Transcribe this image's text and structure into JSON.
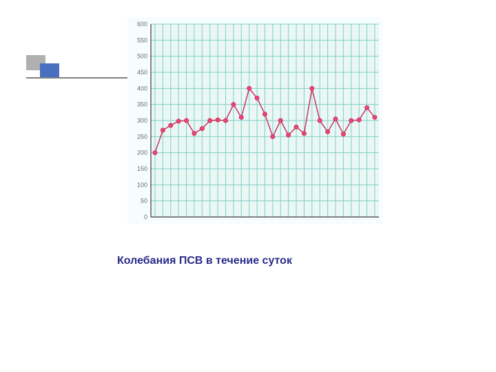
{
  "caption": {
    "text": "Колебания ПСВ в течение суток",
    "color": "#2a2a8a",
    "fontsize": 16,
    "fontweight": "bold"
  },
  "decoration": {
    "block1_color": "#b0b0b0",
    "block2_color": "#4a6fc0",
    "line_color": "#808080"
  },
  "chart": {
    "type": "line",
    "background_color": "#f5fdfd",
    "plot_background": "#eaf7f5",
    "grid_color": "#7fcfc5",
    "grid_width": 1,
    "axis_color": "#3a3a3a",
    "ylim": [
      0,
      600
    ],
    "ytick_step": 50,
    "ytick_labels": [
      "0",
      "50",
      "100",
      "150",
      "200",
      "250",
      "300",
      "350",
      "400",
      "450",
      "500",
      "550",
      "600"
    ],
    "ytick_fontsize": 9,
    "ytick_color": "#6a6a6a",
    "x_count": 29,
    "line_color": "#c83262",
    "line_width": 1.5,
    "marker_color": "#d0305a",
    "marker_fill": "#e84878",
    "marker_radius": 3,
    "values": [
      200,
      270,
      285,
      298,
      300,
      260,
      275,
      300,
      302,
      300,
      350,
      310,
      400,
      370,
      320,
      250,
      300,
      255,
      280,
      260,
      400,
      300,
      265,
      305,
      258,
      300,
      302,
      340,
      310
    ]
  }
}
